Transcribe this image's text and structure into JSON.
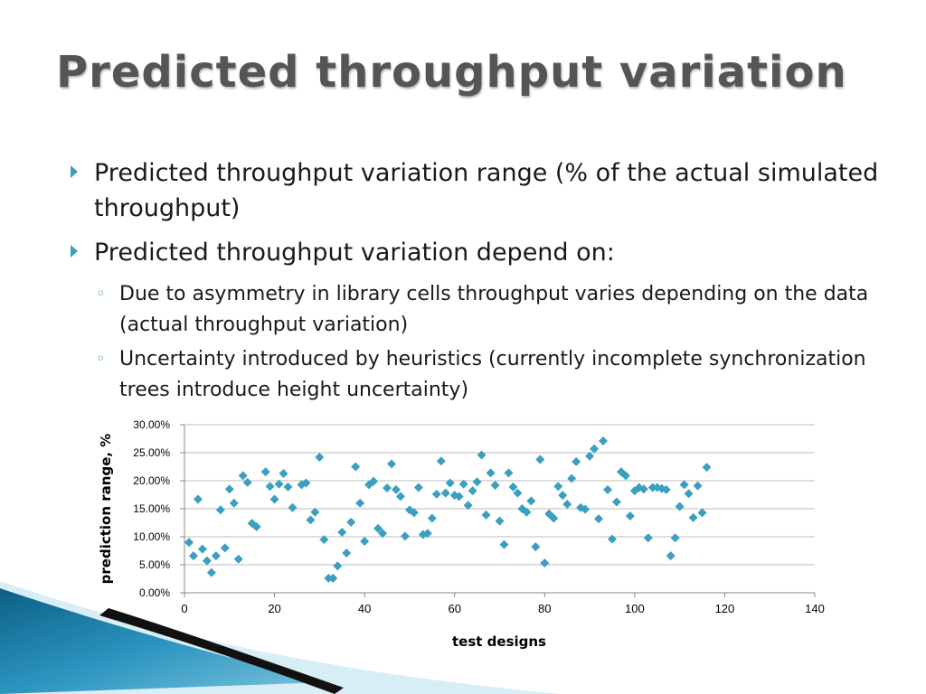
{
  "slide": {
    "title": "Predicted throughput variation",
    "bullets": [
      {
        "text": "Predicted throughput variation range (% of the actual simulated throughput)"
      },
      {
        "text": "Predicted throughput variation depend on:"
      }
    ],
    "subbullets": [
      {
        "text": "Due to asymmetry in library cells throughput varies depending on the data (actual throughput variation)"
      },
      {
        "text": "Uncertainty introduced by heuristics (currently incomplete synchronization trees introduce height uncertainty)"
      }
    ],
    "colors": {
      "accent": "#3a9fc0",
      "title": "#555555",
      "marker": "#3a9fc0"
    }
  },
  "chart_data": {
    "type": "scatter",
    "xlabel": "test designs",
    "ylabel": "prediction range, %",
    "xlim": [
      0,
      140
    ],
    "ylim": [
      0,
      30
    ],
    "xticks": [
      "0",
      "20",
      "40",
      "60",
      "80",
      "100",
      "120",
      "140"
    ],
    "yticks": [
      "0.00%",
      "5.00%",
      "10.00%",
      "15.00%",
      "20.00%",
      "25.00%",
      "30.00%"
    ],
    "grid": "horizontal",
    "marker": "diamond",
    "points": [
      [
        1,
        9
      ],
      [
        2,
        6.6
      ],
      [
        3,
        16.7
      ],
      [
        4,
        7.8
      ],
      [
        5,
        5.7
      ],
      [
        6,
        3.6
      ],
      [
        7,
        6.6
      ],
      [
        8,
        14.8
      ],
      [
        9,
        8
      ],
      [
        10,
        18.5
      ],
      [
        11,
        16
      ],
      [
        12,
        6
      ],
      [
        13,
        20.9
      ],
      [
        14,
        19.7
      ],
      [
        15,
        12.4
      ],
      [
        16,
        11.8
      ],
      [
        18,
        21.6
      ],
      [
        19,
        19
      ],
      [
        20,
        16.7
      ],
      [
        21,
        19.4
      ],
      [
        22,
        21.3
      ],
      [
        23,
        18.9
      ],
      [
        24,
        15.2
      ],
      [
        26,
        19.3
      ],
      [
        27,
        19.6
      ],
      [
        28,
        13
      ],
      [
        29,
        14.4
      ],
      [
        30,
        24.2
      ],
      [
        31,
        9.5
      ],
      [
        32,
        2.6
      ],
      [
        33,
        2.6
      ],
      [
        34,
        4.8
      ],
      [
        35,
        10.8
      ],
      [
        36,
        7.1
      ],
      [
        37,
        12.6
      ],
      [
        38,
        22.5
      ],
      [
        39,
        16
      ],
      [
        40,
        9.2
      ],
      [
        41,
        19.3
      ],
      [
        42,
        19.9
      ],
      [
        43,
        11.5
      ],
      [
        44,
        10.6
      ],
      [
        45,
        18.7
      ],
      [
        46,
        23
      ],
      [
        47,
        18.4
      ],
      [
        48,
        17.2
      ],
      [
        49,
        10.1
      ],
      [
        50,
        14.8
      ],
      [
        51,
        14.3
      ],
      [
        52,
        18.8
      ],
      [
        53,
        10.4
      ],
      [
        54,
        10.6
      ],
      [
        55,
        13.3
      ],
      [
        56,
        17.6
      ],
      [
        57,
        23.5
      ],
      [
        58,
        17.8
      ],
      [
        59,
        19.6
      ],
      [
        60,
        17.4
      ],
      [
        61,
        17.2
      ],
      [
        62,
        19.4
      ],
      [
        63,
        15.6
      ],
      [
        64,
        18.2
      ],
      [
        65,
        19.8
      ],
      [
        66,
        24.6
      ],
      [
        67,
        13.9
      ],
      [
        68,
        21.4
      ],
      [
        69,
        19.2
      ],
      [
        70,
        12.8
      ],
      [
        71,
        8.6
      ],
      [
        72,
        21.4
      ],
      [
        73,
        18.9
      ],
      [
        74,
        17.8
      ],
      [
        75,
        15
      ],
      [
        76,
        14.4
      ],
      [
        77,
        16.4
      ],
      [
        78,
        8.2
      ],
      [
        79,
        23.8
      ],
      [
        80,
        5.3
      ],
      [
        81,
        14.1
      ],
      [
        82,
        13.3
      ],
      [
        83,
        19
      ],
      [
        84,
        17.4
      ],
      [
        85,
        15.8
      ],
      [
        86,
        20.4
      ],
      [
        87,
        23.4
      ],
      [
        88,
        15.2
      ],
      [
        89,
        14.9
      ],
      [
        90,
        24.4
      ],
      [
        91,
        25.7
      ],
      [
        92,
        13.2
      ],
      [
        93,
        27.1
      ],
      [
        94,
        18.4
      ],
      [
        95,
        9.6
      ],
      [
        96,
        16.2
      ],
      [
        97,
        21.6
      ],
      [
        98,
        20.9
      ],
      [
        99,
        13.7
      ],
      [
        100,
        18.2
      ],
      [
        101,
        18.8
      ],
      [
        102,
        18.5
      ],
      [
        103,
        9.8
      ],
      [
        104,
        18.8
      ],
      [
        105,
        18.8
      ],
      [
        106,
        18.6
      ],
      [
        107,
        18.4
      ],
      [
        108,
        6.6
      ],
      [
        109,
        9.8
      ],
      [
        110,
        15.4
      ],
      [
        111,
        19.3
      ],
      [
        112,
        17.7
      ],
      [
        113,
        13.4
      ],
      [
        114,
        19.1
      ],
      [
        115,
        14.3
      ],
      [
        116,
        22.4
      ]
    ]
  }
}
